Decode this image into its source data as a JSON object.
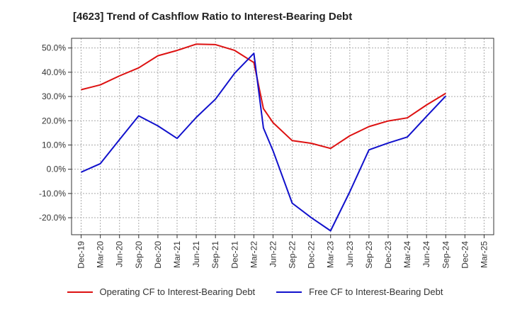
{
  "title": "[4623]  Trend of Cashflow Ratio to Interest-Bearing Debt",
  "colors": {
    "operating": "#dd1111",
    "free": "#1111cc",
    "grid": "#aaaaaa",
    "axis": "#333333"
  },
  "chart_data": {
    "type": "line",
    "title": "[4623]  Trend of Cashflow Ratio to Interest-Bearing Debt",
    "xlabel": "",
    "ylabel": "",
    "x": [
      "Dec-19",
      "Mar-20",
      "Jun-20",
      "Sep-20",
      "Dec-20",
      "Mar-21",
      "Jun-21",
      "Sep-21",
      "Dec-21",
      "Mar-22",
      "Jun-22",
      "Sep-22",
      "Dec-22",
      "Mar-23",
      "Jun-23",
      "Sep-23",
      "Dec-23",
      "Mar-24",
      "Jun-24",
      "Sep-24",
      "Dec-24",
      "Mar-25"
    ],
    "ylim": [
      -27.0,
      54.0
    ],
    "yticks": [
      50,
      40,
      30,
      20,
      10,
      0,
      -10,
      -20
    ],
    "ytick_labels": [
      "50.0%",
      "40.0%",
      "30.0%",
      "20.0%",
      "10.0%",
      "0.0%",
      "-10.0%",
      "-20.0%"
    ],
    "grid": true,
    "legend_position": "bottom",
    "series": [
      {
        "name": "Operating CF to Interest-Bearing Debt",
        "color": "#dd1111",
        "points": [
          [
            0,
            32.8
          ],
          [
            1,
            34.8
          ],
          [
            2,
            38.5
          ],
          [
            3,
            41.8
          ],
          [
            4,
            46.8
          ],
          [
            5,
            49.0
          ],
          [
            6,
            51.6
          ],
          [
            7,
            51.4
          ],
          [
            8,
            49.0
          ],
          [
            9,
            44.0
          ],
          [
            9.5,
            25.0
          ],
          [
            10,
            19.2
          ],
          [
            11,
            11.8
          ],
          [
            12,
            10.7
          ],
          [
            13,
            8.6
          ],
          [
            14,
            13.8
          ],
          [
            15,
            17.6
          ],
          [
            16,
            19.9
          ],
          [
            17,
            21.2
          ],
          [
            18,
            26.5
          ],
          [
            19,
            31.3
          ]
        ]
      },
      {
        "name": "Free CF to Interest-Bearing Debt",
        "color": "#1111cc",
        "points": [
          [
            0,
            -1.2
          ],
          [
            1,
            2.3
          ],
          [
            2,
            12.2
          ],
          [
            3,
            22.0
          ],
          [
            4,
            17.9
          ],
          [
            5,
            12.7
          ],
          [
            6,
            21.4
          ],
          [
            7,
            28.9
          ],
          [
            8,
            39.6
          ],
          [
            9,
            47.8
          ],
          [
            9.5,
            17.0
          ],
          [
            10,
            7.6
          ],
          [
            11,
            -14.0
          ],
          [
            12,
            -20.0
          ],
          [
            13,
            -25.4
          ],
          [
            14,
            -9.3
          ],
          [
            15,
            8.0
          ],
          [
            16,
            10.8
          ],
          [
            17,
            13.3
          ],
          [
            18,
            21.8
          ],
          [
            19,
            30.2
          ]
        ]
      }
    ]
  }
}
